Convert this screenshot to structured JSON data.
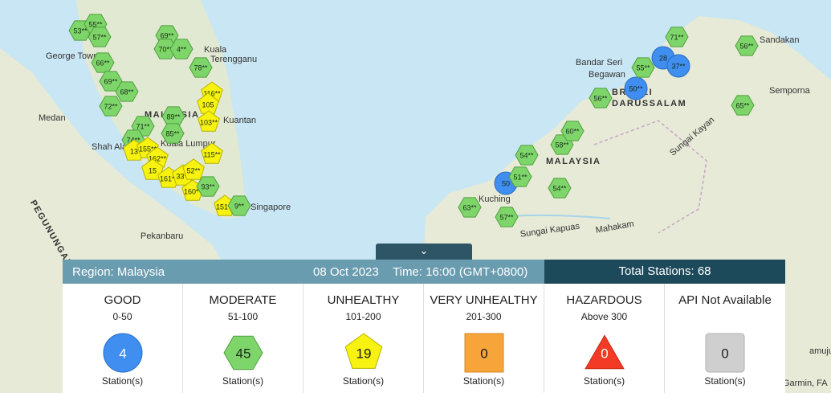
{
  "map": {
    "labels": [
      "George Town",
      "Kuala",
      "Terengganu",
      "Medan",
      "Kuantan",
      "Shah Alam",
      "Kuala Lumpur",
      "MALAYSIA",
      "Singapore",
      "Pekanbaru",
      "PEGUNUNGAN",
      "Bandar Seri",
      "Begawan",
      "BRUNEI",
      "DARUSSALAM",
      "Sandakan",
      "Semporna",
      "MALAYSIA",
      "Kuching",
      "Sungai Kapuas",
      "Mahakam",
      "Sungai Kayan",
      "amuju",
      "Garmin, FA"
    ],
    "markers": [
      {
        "label": "53**",
        "level": "moderate"
      },
      {
        "label": "55**",
        "level": "moderate"
      },
      {
        "label": "57**",
        "level": "moderate"
      },
      {
        "label": "66**",
        "level": "moderate"
      },
      {
        "label": "69**",
        "level": "moderate"
      },
      {
        "label": "68**",
        "level": "moderate"
      },
      {
        "label": "72**",
        "level": "moderate"
      },
      {
        "label": "69**",
        "level": "moderate"
      },
      {
        "label": "70**",
        "level": "moderate"
      },
      {
        "label": "4**",
        "level": "moderate"
      },
      {
        "label": "78**",
        "level": "moderate"
      },
      {
        "label": "116**",
        "level": "unhealthy"
      },
      {
        "label": "105",
        "level": "unhealthy"
      },
      {
        "label": "103**",
        "level": "unhealthy"
      },
      {
        "label": "89**",
        "level": "moderate"
      },
      {
        "label": "71**",
        "level": "moderate"
      },
      {
        "label": "85**",
        "level": "moderate"
      },
      {
        "label": "74**",
        "level": "moderate"
      },
      {
        "label": "115**",
        "level": "unhealthy"
      },
      {
        "label": "13",
        "level": "unhealthy"
      },
      {
        "label": "155**",
        "level": "unhealthy"
      },
      {
        "label": "162**",
        "level": "unhealthy"
      },
      {
        "label": "15",
        "level": "unhealthy"
      },
      {
        "label": "161**",
        "level": "unhealthy"
      },
      {
        "label": "33**",
        "level": "unhealthy"
      },
      {
        "label": "52**",
        "level": "unhealthy"
      },
      {
        "label": "160**",
        "level": "unhealthy"
      },
      {
        "label": "93**",
        "level": "moderate"
      },
      {
        "label": "151**",
        "level": "unhealthy"
      },
      {
        "label": "9**",
        "level": "moderate"
      },
      {
        "label": "50",
        "level": "good"
      },
      {
        "label": "51**",
        "level": "moderate"
      },
      {
        "label": "54**",
        "level": "moderate"
      },
      {
        "label": "58**",
        "level": "moderate"
      },
      {
        "label": "60**",
        "level": "moderate"
      },
      {
        "label": "63**",
        "level": "moderate"
      },
      {
        "label": "57**",
        "level": "moderate"
      },
      {
        "label": "54**",
        "level": "moderate"
      },
      {
        "label": "56**",
        "level": "moderate"
      },
      {
        "label": "50**",
        "level": "good"
      },
      {
        "label": "55**",
        "level": "moderate"
      },
      {
        "label": "28",
        "level": "good"
      },
      {
        "label": "71**",
        "level": "moderate"
      },
      {
        "label": "37**",
        "level": "good"
      },
      {
        "label": "56**",
        "level": "moderate"
      },
      {
        "label": "65**",
        "level": "moderate"
      }
    ]
  },
  "panel": {
    "region": "Region: Malaysia",
    "date": "08 Oct 2023",
    "time": "Time: 16:00 (GMT+0800)",
    "total": "Total Stations: 68",
    "categories": [
      {
        "name": "GOOD",
        "range": "0-50",
        "count": 4,
        "unit": "Station(s)",
        "level": "good"
      },
      {
        "name": "MODERATE",
        "range": "51-100",
        "count": 45,
        "unit": "Station(s)",
        "level": "moderate"
      },
      {
        "name": "UNHEALTHY",
        "range": "101-200",
        "count": 19,
        "unit": "Station(s)",
        "level": "unhealthy"
      },
      {
        "name": "VERY UNHEALTHY",
        "range": "201-300",
        "count": 0,
        "unit": "Station(s)",
        "level": "very"
      },
      {
        "name": "HAZARDOUS",
        "range": "Above 300",
        "count": 0,
        "unit": "Station(s)",
        "level": "hazard"
      },
      {
        "name": "API Not Available",
        "range": null,
        "count": 0,
        "unit": "Station(s)",
        "level": "na"
      }
    ]
  }
}
